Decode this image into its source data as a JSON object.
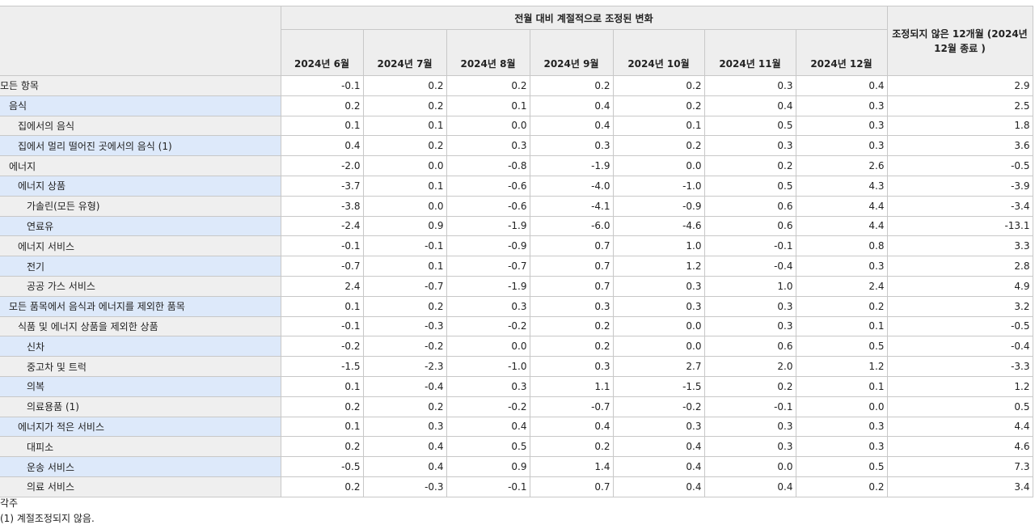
{
  "table": {
    "group_header": "전월 대비 계절적으로 조정된 변화",
    "columns": [
      "2024년 6월",
      "2024년 7월",
      "2024년 8월",
      "2024년 9월",
      "2024년 10월",
      "2024년 11월",
      "2024년 12월"
    ],
    "last_header": "조정되지 않은 12개월 (2024년 12월 종료 )",
    "rows": [
      [
        "모든 항목",
        "-0.1",
        "0.2",
        "0.2",
        "0.2",
        "0.2",
        "0.3",
        "0.4",
        "2.9"
      ],
      [
        "음식",
        "0.2",
        "0.2",
        "0.1",
        "0.4",
        "0.2",
        "0.4",
        "0.3",
        "2.5"
      ],
      [
        "집에서의 음식",
        "0.1",
        "0.1",
        "0.0",
        "0.4",
        "0.1",
        "0.5",
        "0.3",
        "1.8"
      ],
      [
        "집에서 멀리 떨어진 곳에서의 음식 (1)",
        "0.4",
        "0.2",
        "0.3",
        "0.3",
        "0.2",
        "0.3",
        "0.3",
        "3.6"
      ],
      [
        "에너지",
        "-2.0",
        "0.0",
        "-0.8",
        "-1.9",
        "0.0",
        "0.2",
        "2.6",
        "-0.5"
      ],
      [
        "에너지 상품",
        "-3.7",
        "0.1",
        "-0.6",
        "-4.0",
        "-1.0",
        "0.5",
        "4.3",
        "-3.9"
      ],
      [
        "가솔린(모든 유형)",
        "-3.8",
        "0.0",
        "-0.6",
        "-4.1",
        "-0.9",
        "0.6",
        "4.4",
        "-3.4"
      ],
      [
        "연료유",
        "-2.4",
        "0.9",
        "-1.9",
        "-6.0",
        "-4.6",
        "0.6",
        "4.4",
        "-13.1"
      ],
      [
        "에너지 서비스",
        "-0.1",
        "-0.1",
        "-0.9",
        "0.7",
        "1.0",
        "-0.1",
        "0.8",
        "3.3"
      ],
      [
        "전기",
        "-0.7",
        "0.1",
        "-0.7",
        "0.7",
        "1.2",
        "-0.4",
        "0.3",
        "2.8"
      ],
      [
        "공공 가스 서비스",
        "2.4",
        "-0.7",
        "-1.9",
        "0.7",
        "0.3",
        "1.0",
        "2.4",
        "4.9"
      ],
      [
        "모든 품목에서 음식과 에너지를 제외한 품목",
        "0.1",
        "0.2",
        "0.3",
        "0.3",
        "0.3",
        "0.3",
        "0.2",
        "3.2"
      ],
      [
        "식품 및 에너지 상품을 제외한 상품",
        "-0.1",
        "-0.3",
        "-0.2",
        "0.2",
        "0.0",
        "0.3",
        "0.1",
        "-0.5"
      ],
      [
        "신차",
        "-0.2",
        "-0.2",
        "0.0",
        "0.2",
        "0.0",
        "0.6",
        "0.5",
        "-0.4"
      ],
      [
        "중고차 및 트럭",
        "-1.5",
        "-2.3",
        "-1.0",
        "0.3",
        "2.7",
        "2.0",
        "1.2",
        "-3.3"
      ],
      [
        "의복",
        "0.1",
        "-0.4",
        "0.3",
        "1.1",
        "-1.5",
        "0.2",
        "0.1",
        "1.2"
      ],
      [
        "의료용품 (1)",
        "0.2",
        "0.2",
        "-0.2",
        "-0.7",
        "-0.2",
        "-0.1",
        "0.0",
        "0.5"
      ],
      [
        "에너지가 적은 서비스",
        "0.1",
        "0.3",
        "0.4",
        "0.4",
        "0.3",
        "0.3",
        "0.3",
        "4.4"
      ],
      [
        "대피소",
        "0.2",
        "0.4",
        "0.5",
        "0.2",
        "0.4",
        "0.3",
        "0.3",
        "4.6"
      ],
      [
        "운송 서비스",
        "-0.5",
        "0.4",
        "0.9",
        "1.4",
        "0.4",
        "0.0",
        "0.5",
        "7.3"
      ],
      [
        "의료 서비스",
        "0.2",
        "-0.3",
        "-0.1",
        "0.7",
        "0.4",
        "0.4",
        "0.2",
        "3.4"
      ]
    ]
  },
  "footnotes": {
    "title": "각주",
    "items": [
      "(1) 계절조정되지 않음."
    ]
  }
}
